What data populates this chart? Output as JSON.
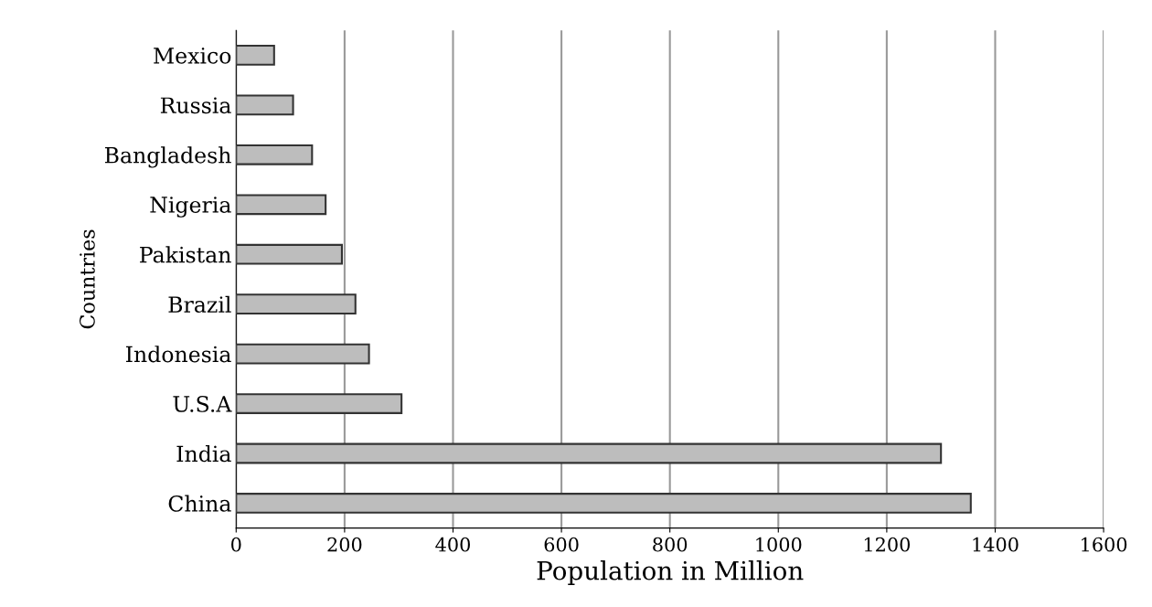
{
  "chart_data": {
    "type": "bar",
    "orientation": "horizontal",
    "xlabel": "Population in Million",
    "ylabel": "Countries",
    "categories": [
      "Mexico",
      "Russia",
      "Bangladesh",
      "Nigeria",
      "Pakistan",
      "Brazil",
      "Indonesia",
      "U.S.A",
      "India",
      "China"
    ],
    "values": [
      70,
      105,
      140,
      165,
      195,
      220,
      245,
      305,
      1300,
      1355
    ],
    "color": "#bdbdbd",
    "xlim": [
      0,
      1600
    ],
    "xticks": [
      0,
      200,
      400,
      600,
      800,
      1000,
      1200,
      1400,
      1600
    ],
    "grid": "x",
    "legend": false
  }
}
